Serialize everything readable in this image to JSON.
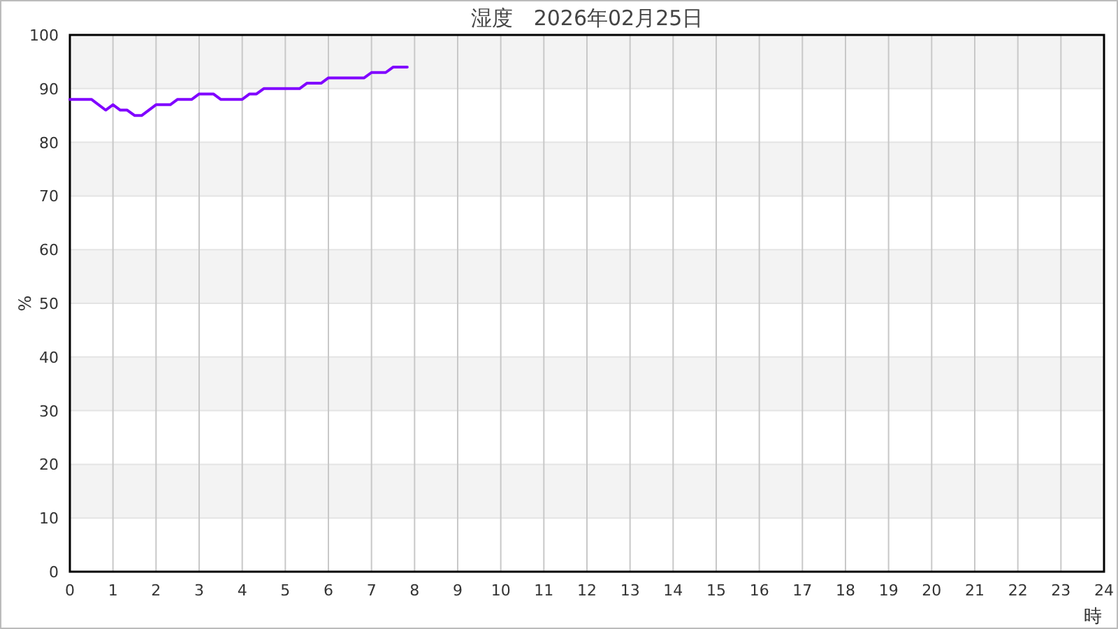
{
  "chart_data": {
    "type": "line",
    "title": "湿度　2026年02月25日",
    "xlabel": "時",
    "ylabel": "%",
    "xlim": [
      0,
      24
    ],
    "xticks": [
      0,
      1,
      2,
      3,
      4,
      5,
      6,
      7,
      8,
      9,
      10,
      11,
      12,
      13,
      14,
      15,
      16,
      17,
      18,
      19,
      20,
      21,
      22,
      23,
      24
    ],
    "ylim": [
      0,
      100
    ],
    "yticks": [
      0,
      10,
      20,
      30,
      40,
      50,
      60,
      70,
      80,
      90,
      100
    ],
    "grid": true,
    "marker": "none",
    "line_style": "solid",
    "series": [
      {
        "color": "#8000ff",
        "x": [
          0,
          0.5,
          0.83,
          1.0,
          1.17,
          1.33,
          1.5,
          1.67,
          2.0,
          2.33,
          2.5,
          2.83,
          3.0,
          3.33,
          3.5,
          4.0,
          4.17,
          4.33,
          4.5,
          5.33,
          5.5,
          5.83,
          6.0,
          6.83,
          7.0,
          7.33,
          7.5,
          7.83
        ],
        "values": [
          88,
          88,
          86,
          87,
          86,
          86,
          85,
          85,
          87,
          87,
          88,
          88,
          89,
          89,
          88,
          88,
          89,
          89,
          90,
          90,
          91,
          91,
          92,
          92,
          93,
          93,
          94,
          94
        ]
      }
    ]
  }
}
